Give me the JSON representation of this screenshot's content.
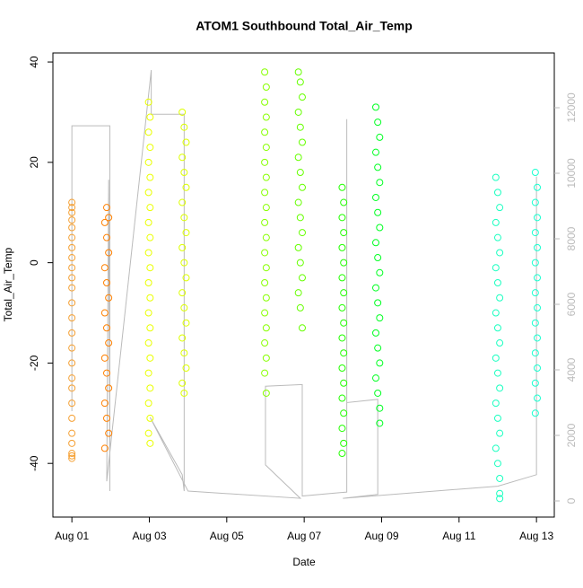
{
  "chart_data": {
    "type": "scatter",
    "title": "ATOM1 Southbound Total_Air_Temp",
    "x_label": "Date",
    "y_label": "Total_Air_Temp",
    "xlim": [
      0.51,
      13.46
    ],
    "xticks": [
      {
        "value": 1,
        "label": "Aug 01"
      },
      {
        "value": 3,
        "label": "Aug 03"
      },
      {
        "value": 5,
        "label": "Aug 05"
      },
      {
        "value": 7,
        "label": "Aug 07"
      },
      {
        "value": 9,
        "label": "Aug 09"
      },
      {
        "value": 11,
        "label": "Aug 11"
      },
      {
        "value": 13,
        "label": "Aug 13"
      }
    ],
    "ylim": [
      -50.7,
      41.8
    ],
    "yticks": [
      -40,
      -20,
      0,
      20,
      40
    ],
    "y2lim": [
      -493,
      13671
    ],
    "y2ticks": [
      0,
      2000,
      4000,
      6000,
      8000,
      10000,
      12000
    ],
    "series": [
      {
        "color": "#f5a033",
        "x": [
          1,
          1,
          1,
          1,
          1,
          1,
          1,
          1,
          1,
          1,
          1,
          1,
          1,
          1,
          1,
          1,
          1,
          1,
          1,
          1,
          1,
          1,
          1,
          1,
          1
        ],
        "values": [
          12,
          11,
          10,
          8.5,
          7,
          5,
          3,
          1,
          -1,
          -3,
          -5,
          -8,
          -11,
          -14,
          -17,
          -20,
          -23,
          -25,
          -28,
          -31,
          -34,
          -36,
          -38,
          -38.5,
          -39
        ]
      },
      {
        "color": "#ff8000",
        "x": [
          1.85,
          1.9,
          1.95,
          1.85,
          1.9,
          1.95,
          1.85,
          1.9,
          1.95,
          1.85,
          1.9,
          1.95,
          1.85,
          1.9,
          1.95,
          1.85,
          1.9,
          1.95
        ],
        "values": [
          8,
          5,
          2,
          -1,
          -4,
          -7,
          -10,
          -13,
          -16,
          -19,
          -22,
          -25,
          -28,
          -31,
          -34,
          -37,
          11,
          9
        ]
      },
      {
        "color": "#eaff00",
        "x": [
          2.98,
          3.02,
          2.98,
          3.02,
          2.98,
          3.02,
          2.98,
          3.02,
          2.98,
          3.02,
          2.98,
          3.02,
          2.98,
          3.02,
          2.98,
          3.02,
          2.98,
          3.02,
          2.98,
          3.02,
          2.98,
          3.02,
          2.98,
          3.02
        ],
        "values": [
          32,
          29,
          26,
          23,
          20,
          17,
          14,
          11,
          8,
          5,
          2,
          -1,
          -4,
          -7,
          -10,
          -13,
          -16,
          -19,
          -22,
          -25,
          -28,
          -31,
          -34,
          -36
        ]
      },
      {
        "color": "#ddff00",
        "x": [
          3.85,
          3.9,
          3.95,
          3.85,
          3.9,
          3.95,
          3.85,
          3.9,
          3.95,
          3.85,
          3.9,
          3.95,
          3.85,
          3.9,
          3.95,
          3.85,
          3.9,
          3.95,
          3.85,
          3.9
        ],
        "values": [
          30,
          27,
          24,
          21,
          18,
          15,
          12,
          9,
          6,
          3,
          0,
          -3,
          -6,
          -9,
          -12,
          -15,
          -18,
          -21,
          -24,
          -26
        ]
      },
      {
        "color": "#88ff00",
        "x": [
          5.98,
          6.02,
          5.98,
          6.02,
          5.98,
          6.02,
          5.98,
          6.02,
          5.98,
          6.02,
          5.98,
          6.02,
          5.98,
          6.02,
          5.98,
          6.02,
          5.98,
          6.02,
          5.98,
          6.02,
          5.98,
          6.02
        ],
        "values": [
          38,
          35,
          32,
          29,
          26,
          23,
          20,
          17,
          14,
          11,
          8,
          5,
          2,
          -1,
          -4,
          -7,
          -10,
          -13,
          -16,
          -19,
          -22,
          -26
        ]
      },
      {
        "color": "#66ff00",
        "x": [
          6.85,
          6.9,
          6.95,
          6.85,
          6.9,
          6.95,
          6.85,
          6.9,
          6.95,
          6.85,
          6.9,
          6.95,
          6.85,
          6.9,
          6.95,
          6.85,
          6.9,
          6.95
        ],
        "values": [
          38,
          36,
          33,
          30,
          27,
          24,
          21,
          18,
          15,
          12,
          9,
          6,
          3,
          0,
          -3,
          -6,
          -9,
          -13
        ]
      },
      {
        "color": "#22ff00",
        "x": [
          7.98,
          8.02,
          7.98,
          8.02,
          7.98,
          8.02,
          7.98,
          8.02,
          7.98,
          8.02,
          7.98,
          8.02,
          7.98,
          8.02,
          7.98,
          8.02,
          7.98,
          8.02,
          7.98
        ],
        "values": [
          15,
          12,
          9,
          6,
          3,
          0,
          -3,
          -6,
          -9,
          -12,
          -15,
          -18,
          -21,
          -24,
          -27,
          -30,
          -33,
          -36,
          -38
        ]
      },
      {
        "color": "#00ff22",
        "x": [
          8.85,
          8.9,
          8.95,
          8.85,
          8.9,
          8.95,
          8.85,
          8.9,
          8.95,
          8.85,
          8.9,
          8.95,
          8.85,
          8.9,
          8.95,
          8.85,
          8.9,
          8.95,
          8.85,
          8.9,
          8.95,
          8.95
        ],
        "values": [
          31,
          28,
          25,
          22,
          19,
          16,
          13,
          10,
          7,
          4,
          1,
          -2,
          -5,
          -8,
          -11,
          -14,
          -17,
          -20,
          -23,
          -26,
          -29,
          -32
        ]
      },
      {
        "color": "#1affc0",
        "x": [
          11.95,
          12.0,
          12.05,
          11.95,
          12.0,
          12.05,
          11.95,
          12.0,
          12.05,
          11.95,
          12.0,
          12.05,
          11.95,
          12.0,
          12.05,
          11.95,
          12.0,
          12.05,
          11.95,
          12.0,
          12.05,
          12.05,
          12.05
        ],
        "values": [
          17,
          14,
          11,
          8,
          5,
          2,
          -1,
          -4,
          -7,
          -10,
          -13,
          -16,
          -19,
          -22,
          -25,
          -28,
          -31,
          -34,
          -37,
          -40,
          -43,
          -46,
          -47
        ]
      },
      {
        "color": "#1affd0",
        "x": [
          12.97,
          13.02,
          12.97,
          13.02,
          12.97,
          13.02,
          12.97,
          13.02,
          12.97,
          13.02,
          12.97,
          13.02,
          12.97,
          13.02,
          12.97,
          13.02,
          12.97
        ],
        "values": [
          18,
          15,
          12,
          9,
          6,
          3,
          0,
          -3,
          -6,
          -9,
          -12,
          -15,
          -18,
          -21,
          -24,
          -27,
          -30
        ]
      },
      {
        "type": "line",
        "axis": "y2",
        "color": "#bbbbbb",
        "x": [
          1.0,
          1.0,
          1.98,
          1.98,
          1.95,
          1.9,
          3.05,
          3.05,
          3.9,
          3.9,
          3.85,
          3.02,
          4.0,
          6.9,
          6.0,
          6.0,
          6.95,
          6.95,
          8.1,
          8.1,
          8.1,
          8.9,
          8.9,
          8.0,
          12.0,
          13.0,
          13.0
        ],
        "values": [
          2740,
          11450,
          11450,
          300,
          9800,
          600,
          13150,
          11800,
          11800,
          300,
          800,
          2550,
          300,
          80,
          1100,
          3500,
          3550,
          150,
          270,
          11650,
          3000,
          3100,
          200,
          80,
          450,
          800,
          9900
        ]
      }
    ]
  }
}
